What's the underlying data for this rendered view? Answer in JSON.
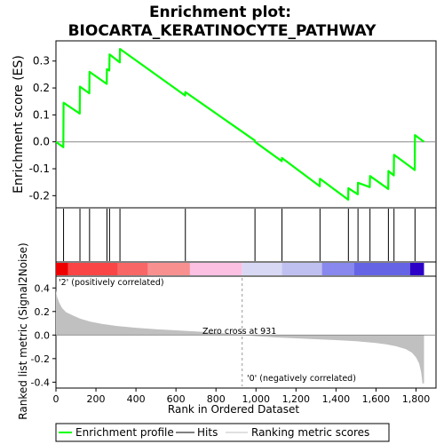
{
  "title_line1": "Enrichment plot:",
  "title_line2": "BIOCARTA_KERATINOCYTE_PATHWAY",
  "chart_data": {
    "type": "line",
    "title": "Enrichment plot: BIOCARTA_KERATINOCYTE_PATHWAY",
    "xlabel": "Rank in Ordered Dataset",
    "es_ylabel": "Enrichment score (ES)",
    "metric_ylabel": "Ranked list metric (Signal2Noise)",
    "xlim": [
      0,
      1900
    ],
    "es_ylim": [
      -0.245,
      0.375
    ],
    "metric_ylim": [
      -0.45,
      0.5
    ],
    "x_ticks": [
      0,
      200,
      400,
      600,
      800,
      1000,
      1200,
      1400,
      1600,
      1800
    ],
    "x_tick_labels": [
      "0",
      "200",
      "400",
      "600",
      "800",
      "1,000",
      "1,200",
      "1,400",
      "1,600",
      "1,800"
    ],
    "es_ticks": [
      -0.2,
      -0.1,
      0.0,
      0.1,
      0.2,
      0.3
    ],
    "es_tick_labels": [
      "-0.2",
      "-0.1",
      "0.0",
      "0.1",
      "0.2",
      "0.3"
    ],
    "metric_ticks": [
      -0.4,
      -0.2,
      0.0,
      0.2,
      0.4
    ],
    "metric_tick_labels": [
      "-0.4",
      "-0.2",
      "0.0",
      "0.2",
      "0.4"
    ],
    "hits": [
      38,
      120,
      168,
      255,
      268,
      320,
      647,
      995,
      1130,
      1320,
      1462,
      1510,
      1570,
      1662,
      1690,
      1795
    ],
    "es_curve": [
      [
        0,
        0.0
      ],
      [
        37,
        -0.02
      ],
      [
        38,
        0.145
      ],
      [
        119,
        0.105
      ],
      [
        120,
        0.205
      ],
      [
        167,
        0.18
      ],
      [
        168,
        0.26
      ],
      [
        254,
        0.215
      ],
      [
        255,
        0.27
      ],
      [
        267,
        0.265
      ],
      [
        268,
        0.325
      ],
      [
        319,
        0.295
      ],
      [
        320,
        0.345
      ],
      [
        646,
        0.172
      ],
      [
        647,
        0.185
      ],
      [
        994,
        0.005
      ],
      [
        995,
        0.0
      ],
      [
        1129,
        -0.072
      ],
      [
        1130,
        -0.06
      ],
      [
        1319,
        -0.165
      ],
      [
        1320,
        -0.137
      ],
      [
        1461,
        -0.215
      ],
      [
        1462,
        -0.172
      ],
      [
        1509,
        -0.195
      ],
      [
        1510,
        -0.152
      ],
      [
        1569,
        -0.168
      ],
      [
        1570,
        -0.127
      ],
      [
        1661,
        -0.175
      ],
      [
        1662,
        -0.108
      ],
      [
        1689,
        -0.125
      ],
      [
        1690,
        -0.048
      ],
      [
        1794,
        -0.105
      ],
      [
        1795,
        0.025
      ],
      [
        1840,
        0.0
      ]
    ],
    "metric_curve": [
      [
        0,
        0.38
      ],
      [
        5,
        0.33
      ],
      [
        15,
        0.28
      ],
      [
        30,
        0.23
      ],
      [
        50,
        0.195
      ],
      [
        80,
        0.17
      ],
      [
        120,
        0.14
      ],
      [
        170,
        0.115
      ],
      [
        230,
        0.095
      ],
      [
        300,
        0.078
      ],
      [
        400,
        0.062
      ],
      [
        500,
        0.05
      ],
      [
        600,
        0.04
      ],
      [
        700,
        0.03
      ],
      [
        800,
        0.02
      ],
      [
        900,
        0.008
      ],
      [
        931,
        0.0
      ],
      [
        1000,
        -0.01
      ],
      [
        1100,
        -0.02
      ],
      [
        1200,
        -0.028
      ],
      [
        1300,
        -0.035
      ],
      [
        1400,
        -0.043
      ],
      [
        1500,
        -0.053
      ],
      [
        1600,
        -0.067
      ],
      [
        1650,
        -0.078
      ],
      [
        1700,
        -0.095
      ],
      [
        1750,
        -0.12
      ],
      [
        1780,
        -0.15
      ],
      [
        1800,
        -0.19
      ],
      [
        1815,
        -0.24
      ],
      [
        1825,
        -0.31
      ],
      [
        1830,
        -0.37
      ],
      [
        1832,
        -0.41
      ],
      [
        1840,
        -0.41
      ]
    ],
    "zero_cross": 931,
    "ranked_list_size": 1840,
    "heat_bar": {
      "segments": [
        {
          "from": 0,
          "to": 60,
          "color": "#ee0000"
        },
        {
          "from": 60,
          "to": 310,
          "color": "#f94545"
        },
        {
          "from": 310,
          "to": 460,
          "color": "#f96666"
        },
        {
          "from": 460,
          "to": 670,
          "color": "#f99090"
        },
        {
          "from": 670,
          "to": 931,
          "color": "#fbc0e2"
        },
        {
          "from": 931,
          "to": 1130,
          "color": "#d8d8f5"
        },
        {
          "from": 1130,
          "to": 1330,
          "color": "#c0c0f0"
        },
        {
          "from": 1330,
          "to": 1490,
          "color": "#8888ee"
        },
        {
          "from": 1490,
          "to": 1770,
          "color": "#6464e4"
        },
        {
          "from": 1770,
          "to": 1840,
          "color": "#2d00c8"
        }
      ]
    },
    "annotations": {
      "positive": "'2' (positively correlated)",
      "negative": "'0' (negatively correlated)",
      "zero_cross": "Zero cross at 931"
    },
    "legend": {
      "position": "bottom",
      "entries": [
        {
          "label": "Enrichment profile",
          "color": "#00ff00"
        },
        {
          "label": "Hits",
          "color": "#000000"
        },
        {
          "label": "Ranking metric scores",
          "color": "#c0c0c0"
        }
      ]
    },
    "colors": {
      "es_line": "#00ff00",
      "metric_fill": "#c0c0c0",
      "positive_text": "#cc0000",
      "negative_text": "#0000cc"
    }
  }
}
